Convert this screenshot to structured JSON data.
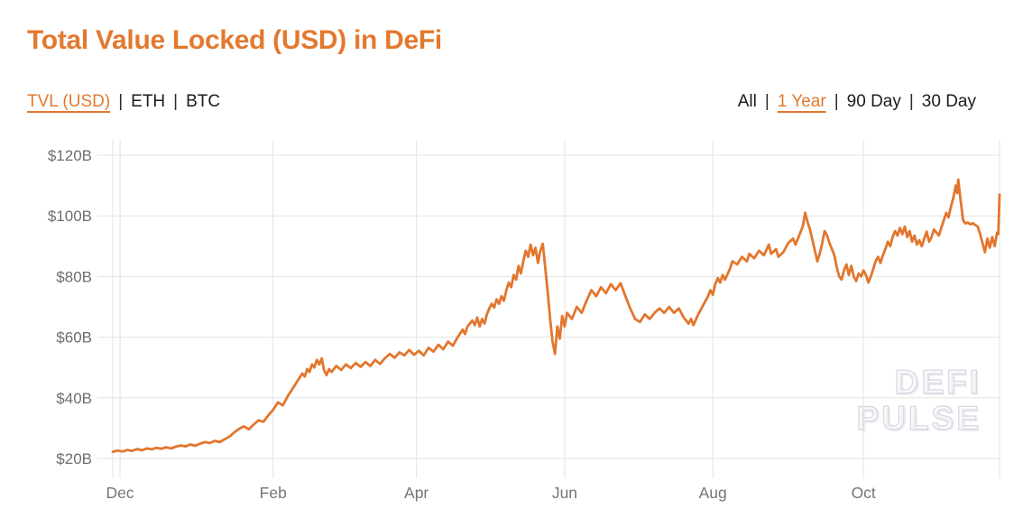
{
  "header": {
    "title": "Total Value Locked (USD) in DeFi",
    "separator": "|",
    "metric_tabs": [
      {
        "label": "TVL (USD)",
        "active": true
      },
      {
        "label": "ETH",
        "active": false
      },
      {
        "label": "BTC",
        "active": false
      }
    ],
    "range_tabs": [
      {
        "label": "All",
        "active": false
      },
      {
        "label": "1 Year",
        "active": true
      },
      {
        "label": "90 Day",
        "active": false
      },
      {
        "label": "30 Day",
        "active": false
      }
    ]
  },
  "watermark": {
    "line1": "DEFI",
    "line2": "PULSE"
  },
  "colors": {
    "accent": "#e2792f",
    "line": "#e2762e",
    "grid": "#e3e3e3",
    "axis_text": "#6e6e6e",
    "dark_text": "#1b1b1b",
    "watermark": "#d9d9e3"
  },
  "chart_data": {
    "type": "line",
    "title": "Total Value Locked (USD) in DeFi",
    "series_name": "TVL (USD)",
    "y_unit": "USD billions",
    "x_unit": "days across the selected 1-year window (late Nov to late Nov)",
    "x_domain": [
      0,
      365
    ],
    "y_domain": [
      20,
      120
    ],
    "grid": true,
    "legend_position": "none",
    "y_ticks": [
      {
        "value": 20,
        "label": "$20B"
      },
      {
        "value": 40,
        "label": "$40B"
      },
      {
        "value": 60,
        "label": "$60B"
      },
      {
        "value": 80,
        "label": "$80B"
      },
      {
        "value": 100,
        "label": "$100B"
      },
      {
        "value": 120,
        "label": "$120B"
      }
    ],
    "x_ticks": [
      {
        "label": "Dec",
        "day": 3
      },
      {
        "label": "Feb",
        "day": 66
      },
      {
        "label": "Apr",
        "day": 125
      },
      {
        "label": "Jun",
        "day": 186
      },
      {
        "label": "Aug",
        "day": 247
      },
      {
        "label": "Oct",
        "day": 309
      }
    ],
    "points": [
      [
        0,
        22.2
      ],
      [
        2,
        22.6
      ],
      [
        4,
        22.3
      ],
      [
        6,
        22.8
      ],
      [
        8,
        22.5
      ],
      [
        10,
        23.1
      ],
      [
        12,
        22.7
      ],
      [
        14,
        23.3
      ],
      [
        16,
        23.0
      ],
      [
        18,
        23.5
      ],
      [
        20,
        23.2
      ],
      [
        22,
        23.7
      ],
      [
        24,
        23.3
      ],
      [
        26,
        23.9
      ],
      [
        28,
        24.3
      ],
      [
        30,
        24.0
      ],
      [
        32,
        24.6
      ],
      [
        34,
        24.2
      ],
      [
        36,
        24.9
      ],
      [
        38,
        25.4
      ],
      [
        40,
        25.1
      ],
      [
        42,
        25.8
      ],
      [
        44,
        25.4
      ],
      [
        46,
        26.3
      ],
      [
        48,
        27.2
      ],
      [
        50,
        28.6
      ],
      [
        52,
        29.8
      ],
      [
        54,
        30.6
      ],
      [
        56,
        29.6
      ],
      [
        58,
        31.2
      ],
      [
        60,
        32.6
      ],
      [
        62,
        32.1
      ],
      [
        64,
        34.2
      ],
      [
        66,
        36.0
      ],
      [
        68,
        38.5
      ],
      [
        70,
        37.5
      ],
      [
        72,
        40.5
      ],
      [
        74,
        43.0
      ],
      [
        76,
        45.5
      ],
      [
        78,
        48.0
      ],
      [
        79,
        47.0
      ],
      [
        80,
        49.5
      ],
      [
        81,
        48.5
      ],
      [
        82,
        51.0
      ],
      [
        83,
        50.0
      ],
      [
        84,
        52.5
      ],
      [
        85,
        51.0
      ],
      [
        86,
        53.0
      ],
      [
        87,
        49.0
      ],
      [
        88,
        47.5
      ],
      [
        89,
        49.5
      ],
      [
        90,
        48.5
      ],
      [
        92,
        50.5
      ],
      [
        94,
        49.2
      ],
      [
        96,
        51.0
      ],
      [
        98,
        49.8
      ],
      [
        100,
        51.5
      ],
      [
        102,
        50.2
      ],
      [
        104,
        51.8
      ],
      [
        106,
        50.5
      ],
      [
        108,
        52.5
      ],
      [
        110,
        51.2
      ],
      [
        112,
        53.0
      ],
      [
        114,
        54.5
      ],
      [
        116,
        53.2
      ],
      [
        118,
        55.0
      ],
      [
        120,
        54.0
      ],
      [
        122,
        55.8
      ],
      [
        124,
        54.2
      ],
      [
        126,
        55.5
      ],
      [
        128,
        54.0
      ],
      [
        130,
        56.5
      ],
      [
        132,
        55.2
      ],
      [
        134,
        57.5
      ],
      [
        136,
        56.0
      ],
      [
        138,
        58.5
      ],
      [
        140,
        57.2
      ],
      [
        142,
        60.0
      ],
      [
        144,
        62.5
      ],
      [
        145,
        61.0
      ],
      [
        146,
        63.5
      ],
      [
        148,
        65.5
      ],
      [
        149,
        64.0
      ],
      [
        150,
        66.5
      ],
      [
        151,
        63.5
      ],
      [
        152,
        66.0
      ],
      [
        153,
        64.5
      ],
      [
        154,
        67.5
      ],
      [
        155,
        69.5
      ],
      [
        156,
        71.0
      ],
      [
        157,
        69.8
      ],
      [
        158,
        72.5
      ],
      [
        159,
        71.0
      ],
      [
        160,
        73.5
      ],
      [
        161,
        72.0
      ],
      [
        162,
        75.5
      ],
      [
        163,
        78.0
      ],
      [
        164,
        76.5
      ],
      [
        165,
        80.5
      ],
      [
        166,
        79.0
      ],
      [
        167,
        83.5
      ],
      [
        168,
        81.0
      ],
      [
        169,
        85.0
      ],
      [
        170,
        88.5
      ],
      [
        171,
        86.5
      ],
      [
        172,
        90.5
      ],
      [
        173,
        87.0
      ],
      [
        174,
        89.5
      ],
      [
        175,
        84.5
      ],
      [
        176,
        88.5
      ],
      [
        177,
        90.8
      ],
      [
        178,
        83.0
      ],
      [
        179,
        75.0
      ],
      [
        180,
        66.0
      ],
      [
        181,
        58.5
      ],
      [
        182,
        54.5
      ],
      [
        183,
        63.5
      ],
      [
        184,
        59.5
      ],
      [
        185,
        67.0
      ],
      [
        186,
        63.5
      ],
      [
        187,
        68.0
      ],
      [
        189,
        66.0
      ],
      [
        191,
        70.0
      ],
      [
        193,
        68.0
      ],
      [
        195,
        72.0
      ],
      [
        197,
        75.5
      ],
      [
        199,
        73.5
      ],
      [
        201,
        76.5
      ],
      [
        203,
        74.5
      ],
      [
        205,
        77.5
      ],
      [
        207,
        75.5
      ],
      [
        209,
        77.8
      ],
      [
        211,
        73.5
      ],
      [
        213,
        69.5
      ],
      [
        215,
        66.0
      ],
      [
        217,
        65.0
      ],
      [
        219,
        67.5
      ],
      [
        221,
        66.0
      ],
      [
        223,
        68.0
      ],
      [
        225,
        69.5
      ],
      [
        227,
        68.0
      ],
      [
        229,
        70.0
      ],
      [
        231,
        68.0
      ],
      [
        233,
        69.5
      ],
      [
        235,
        66.5
      ],
      [
        237,
        64.5
      ],
      [
        238,
        66.0
      ],
      [
        239,
        64.0
      ],
      [
        241,
        67.5
      ],
      [
        243,
        70.5
      ],
      [
        244,
        72.0
      ],
      [
        245,
        73.5
      ],
      [
        246,
        75.5
      ],
      [
        247,
        74.0
      ],
      [
        248,
        77.5
      ],
      [
        249,
        79.5
      ],
      [
        250,
        78.0
      ],
      [
        251,
        80.5
      ],
      [
        252,
        79.0
      ],
      [
        254,
        82.5
      ],
      [
        255,
        85.0
      ],
      [
        257,
        84.0
      ],
      [
        259,
        86.5
      ],
      [
        261,
        85.0
      ],
      [
        262,
        87.5
      ],
      [
        264,
        86.0
      ],
      [
        266,
        88.5
      ],
      [
        268,
        87.0
      ],
      [
        270,
        90.5
      ],
      [
        271,
        87.5
      ],
      [
        273,
        89.0
      ],
      [
        274,
        86.5
      ],
      [
        276,
        88.0
      ],
      [
        278,
        91.0
      ],
      [
        280,
        92.5
      ],
      [
        281,
        90.5
      ],
      [
        283,
        94.5
      ],
      [
        284,
        96.5
      ],
      [
        285,
        101.0
      ],
      [
        286,
        98.0
      ],
      [
        287,
        95.5
      ],
      [
        288,
        92.0
      ],
      [
        289,
        88.5
      ],
      [
        290,
        85.0
      ],
      [
        291,
        87.5
      ],
      [
        292,
        91.0
      ],
      [
        293,
        95.0
      ],
      [
        294,
        93.5
      ],
      [
        295,
        91.0
      ],
      [
        296,
        89.0
      ],
      [
        297,
        87.0
      ],
      [
        298,
        83.0
      ],
      [
        299,
        80.0
      ],
      [
        300,
        79.0
      ],
      [
        301,
        82.0
      ],
      [
        302,
        84.0
      ],
      [
        303,
        80.5
      ],
      [
        304,
        83.5
      ],
      [
        305,
        80.0
      ],
      [
        306,
        78.5
      ],
      [
        307,
        81.0
      ],
      [
        308,
        80.0
      ],
      [
        309,
        82.0
      ],
      [
        310,
        80.5
      ],
      [
        311,
        78.0
      ],
      [
        312,
        80.0
      ],
      [
        313,
        82.5
      ],
      [
        314,
        85.0
      ],
      [
        315,
        86.5
      ],
      [
        316,
        84.5
      ],
      [
        317,
        87.0
      ],
      [
        318,
        89.0
      ],
      [
        319,
        91.5
      ],
      [
        320,
        90.0
      ],
      [
        321,
        93.0
      ],
      [
        322,
        95.0
      ],
      [
        323,
        93.5
      ],
      [
        324,
        96.0
      ],
      [
        325,
        94.0
      ],
      [
        326,
        96.5
      ],
      [
        327,
        93.0
      ],
      [
        328,
        95.0
      ],
      [
        329,
        91.5
      ],
      [
        330,
        93.5
      ],
      [
        331,
        90.5
      ],
      [
        332,
        92.0
      ],
      [
        333,
        90.0
      ],
      [
        334,
        92.5
      ],
      [
        335,
        94.8
      ],
      [
        336,
        91.5
      ],
      [
        337,
        93.0
      ],
      [
        338,
        95.5
      ],
      [
        340,
        93.5
      ],
      [
        341,
        96.0
      ],
      [
        342,
        98.5
      ],
      [
        343,
        101.0
      ],
      [
        344,
        99.5
      ],
      [
        345,
        103.0
      ],
      [
        346,
        106.0
      ],
      [
        347,
        110.0
      ],
      [
        347.6,
        107.5
      ],
      [
        348,
        112.0
      ],
      [
        349,
        105.0
      ],
      [
        350,
        98.5
      ],
      [
        351,
        97.5
      ],
      [
        352,
        97.8
      ],
      [
        353,
        97.2
      ],
      [
        354,
        97.6
      ],
      [
        355,
        97.0
      ],
      [
        356,
        96.5
      ],
      [
        357,
        94.0
      ],
      [
        358,
        91.0
      ],
      [
        359,
        88.0
      ],
      [
        360,
        92.5
      ],
      [
        361,
        89.5
      ],
      [
        362,
        93.0
      ],
      [
        363,
        90.0
      ],
      [
        364,
        94.5
      ],
      [
        364.5,
        94.0
      ],
      [
        365,
        107.0
      ]
    ]
  }
}
